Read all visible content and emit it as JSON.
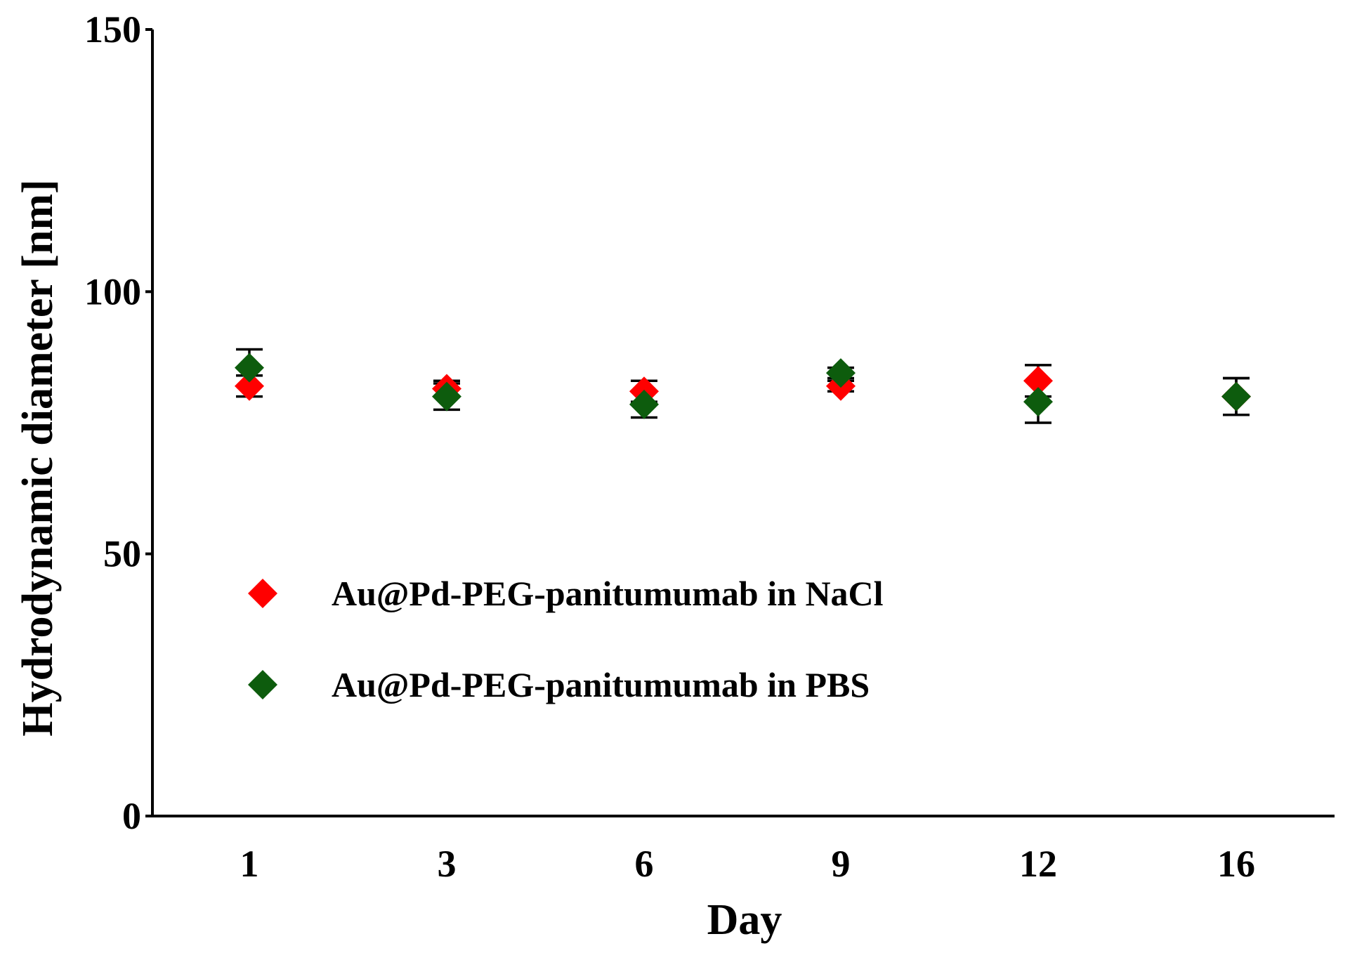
{
  "chart_data": {
    "type": "scatter",
    "title": "",
    "xlabel": "Day",
    "ylabel": "Hydrodynamic diameter [nm]",
    "categories": [
      "1",
      "3",
      "6",
      "9",
      "12",
      "16"
    ],
    "ylim": [
      0,
      150
    ],
    "yticks": [
      "0",
      "50",
      "100",
      "150"
    ],
    "grid": false,
    "legend_position": "lower-left",
    "series": [
      {
        "name": "Au@Pd-PEG-panitumumab in NaCl",
        "color": "#ff0000",
        "marker": "diamond",
        "values": [
          82,
          81.5,
          81,
          82,
          83,
          80
        ],
        "errors": [
          2,
          1.5,
          2,
          1,
          3,
          3.5
        ]
      },
      {
        "name": "Au@Pd-PEG-panitumumab in PBS",
        "color": "#0d5c0d",
        "marker": "diamond",
        "values": [
          85.5,
          80,
          78.5,
          84.5,
          79,
          80
        ],
        "errors": [
          3.5,
          2.5,
          2.5,
          1,
          4,
          3.5
        ]
      }
    ]
  }
}
